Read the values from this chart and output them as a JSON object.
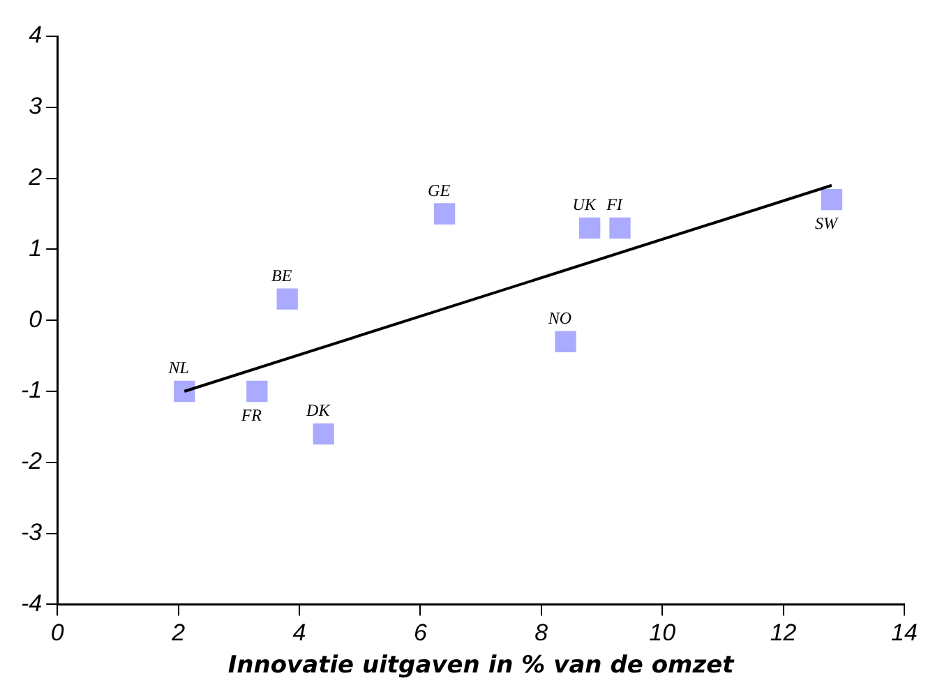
{
  "chart_data": {
    "type": "scatter",
    "xlabel": "Innovatie uitgaven in % van de omzet",
    "xlim": [
      0,
      14
    ],
    "xticks": [
      0,
      2,
      4,
      6,
      8,
      10,
      12,
      14
    ],
    "ylim": [
      -4,
      4
    ],
    "yticks": [
      -4,
      -3,
      -2,
      -1,
      0,
      1,
      2,
      3,
      4
    ],
    "grid": false,
    "legend": false,
    "series": [
      {
        "marker": "square",
        "color": "#aaaaff",
        "x": [
          2.1,
          3.3,
          4.4,
          3.8,
          6.4,
          8.8,
          9.3,
          8.4,
          12.8
        ],
        "values": [
          -1.0,
          -1.0,
          -1.6,
          0.3,
          1.5,
          1.3,
          1.3,
          -0.3,
          1.7
        ]
      },
      {
        "type": "line",
        "color": "#000000",
        "x": [
          2.1,
          12.8
        ],
        "values": [
          -1.0,
          1.9
        ]
      }
    ],
    "annotations": [
      {
        "text": "NL",
        "x": 2.1,
        "y": -1.0
      },
      {
        "text": "FR",
        "x": 3.3,
        "y": -1.0
      },
      {
        "text": "DK",
        "x": 4.4,
        "y": -1.6
      },
      {
        "text": "BE",
        "x": 3.8,
        "y": 0.3
      },
      {
        "text": "GE",
        "x": 6.4,
        "y": 1.5
      },
      {
        "text": "UK",
        "x": 8.8,
        "y": 1.3
      },
      {
        "text": "FI",
        "x": 9.3,
        "y": 1.3
      },
      {
        "text": "NO",
        "x": 8.4,
        "y": -0.3
      },
      {
        "text": "SW",
        "x": 12.8,
        "y": 1.7
      }
    ]
  }
}
